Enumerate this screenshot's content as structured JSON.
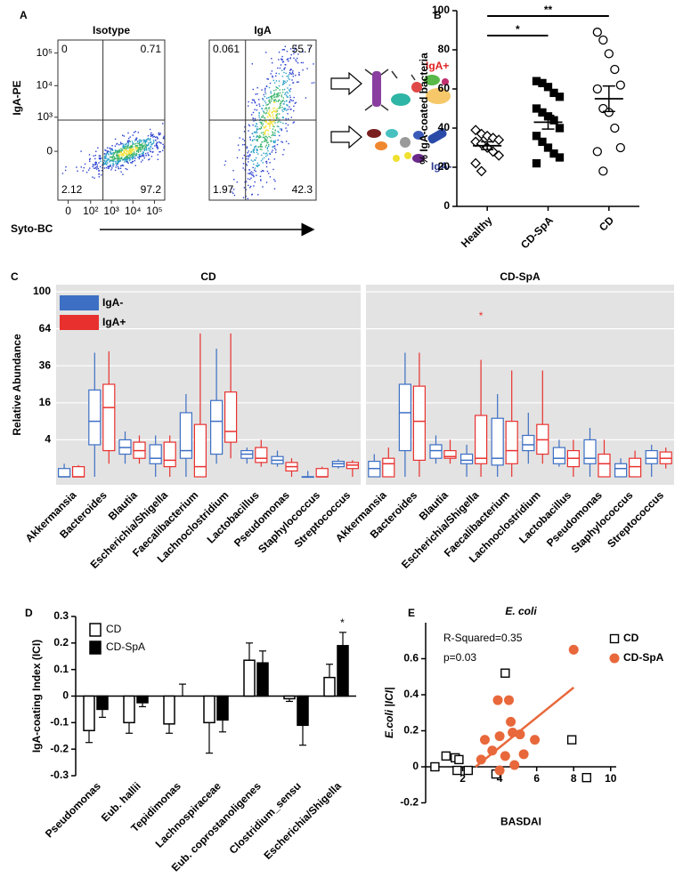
{
  "chart_data": [
    {
      "type": "flow",
      "panel": "A",
      "title": "Isotype",
      "xlabel": "Syto-BC",
      "ylabel": "IgA-PE",
      "scale": "symlog",
      "xlinthresh": 10,
      "ylinthresh": 100,
      "xlim": [
        -20,
        300000
      ],
      "ylim": [
        -3000,
        250000
      ],
      "xticks": [
        0,
        {
          "value": 100,
          "label": "10²"
        },
        {
          "value": 1000,
          "label": "10³"
        },
        {
          "value": 10000,
          "label": "10⁴"
        },
        {
          "value": 100000,
          "label": "10⁵"
        }
      ],
      "yticks": [
        0,
        {
          "value": 1000,
          "label": "10³"
        },
        {
          "value": 10000,
          "label": "10⁴"
        },
        {
          "value": 100000,
          "label": "10⁵"
        }
      ],
      "gates": {
        "x": 400,
        "y": 800
      },
      "quadrants": {
        "upper_left": 0,
        "upper_right": 0.71,
        "lower_left": 2.12,
        "lower_right": 97.2
      }
    },
    {
      "type": "flow",
      "title": "IgA",
      "scale": "symlog",
      "xlinthresh": 10,
      "ylinthresh": 100,
      "xlim": [
        -20,
        300000
      ],
      "ylim": [
        -3000,
        250000
      ],
      "gates": {
        "x": 150,
        "y": 800
      },
      "quadrants": {
        "upper_left": 0.061,
        "upper_right": 55.7,
        "lower_left": 1.97,
        "lower_right": 42.3
      },
      "annotations": [
        {
          "text": "IgA+",
          "color": "#e02020"
        },
        {
          "text": "IgA-",
          "color": "#2b3990"
        }
      ]
    },
    {
      "type": "dot",
      "panel": "B",
      "ylabel": "% IgA-coated bacteria",
      "ylim": [
        0,
        100
      ],
      "yticks": [
        0,
        20,
        40,
        60,
        80,
        100
      ],
      "categories": [
        "Healthy",
        "CD-SpA",
        "CD"
      ],
      "markers": [
        "diamond",
        "square",
        "circle"
      ],
      "colors": [
        "#ffffff",
        "#000000",
        "#ffffff"
      ],
      "values": [
        [
          39,
          37,
          36,
          35,
          34,
          33,
          32,
          30,
          28,
          26,
          22,
          18
        ],
        [
          64,
          63,
          61,
          58,
          56,
          50,
          48,
          46,
          44,
          40,
          36,
          33,
          30,
          27,
          25,
          22
        ],
        [
          89,
          85,
          78,
          70,
          62,
          60,
          50,
          48,
          40,
          30,
          28,
          18
        ]
      ],
      "means": [
        31,
        43,
        55
      ],
      "sems": [
        2,
        3.5,
        6.5
      ],
      "significance": [
        {
          "text": "*",
          "from": "Healthy",
          "to": "CD-SpA"
        },
        {
          "text": "**",
          "from": "Healthy",
          "to": "CD"
        }
      ]
    },
    {
      "type": "box",
      "panel": "C",
      "title": "CD",
      "ylabel": "Relative Abundance",
      "scale": "sqrt",
      "ylim": [
        0,
        100
      ],
      "yticks": [
        4,
        16,
        36,
        64,
        100
      ],
      "legend": "upper left",
      "categories": [
        "Akkermansia",
        "Bacteroides",
        "Blautia",
        "Escherichia/Shigella",
        "Faecalibacterium",
        "Lachnoclostridium",
        "Lactobacillus",
        "Pseudomonas",
        "Staphylococcus",
        "Streptococcus"
      ],
      "series": [
        {
          "name": "IgA-",
          "color": "#3d6fc4",
          "values": [
            [
              0,
              0,
              0,
              0.2,
              0.5
            ],
            [
              0,
              3,
              9,
              22,
              45
            ],
            [
              0.5,
              1.5,
              2.5,
              4,
              6
            ],
            [
              0,
              0.5,
              1,
              3,
              5
            ],
            [
              0,
              1,
              2,
              12,
              20
            ],
            [
              0.5,
              1.5,
              9,
              17,
              48
            ],
            [
              0.5,
              1,
              1.5,
              2,
              2.5
            ],
            [
              0.3,
              0.5,
              0.8,
              1.2,
              2
            ],
            [
              0,
              0,
              0,
              0,
              0.1
            ],
            [
              0.2,
              0.3,
              0.5,
              0.7,
              0.9
            ]
          ]
        },
        {
          "name": "IgA+",
          "color": "#e8312f",
          "values": [
            [
              0,
              0,
              0,
              0.3,
              0.4
            ],
            [
              0.5,
              2,
              14,
              25,
              46
            ],
            [
              0.5,
              1,
              2,
              3.5,
              5
            ],
            [
              0,
              0.3,
              0.8,
              3.5,
              5
            ],
            [
              0,
              0,
              0.3,
              8,
              60
            ],
            [
              1,
              3.5,
              6,
              21,
              60
            ],
            [
              0.3,
              0.6,
              1,
              2.5,
              4
            ],
            [
              0,
              0.1,
              0.3,
              0.6,
              1
            ],
            [
              0,
              0,
              0,
              0.2,
              0.3
            ],
            [
              0,
              0.2,
              0.4,
              0.6,
              0.8
            ]
          ]
        }
      ]
    },
    {
      "type": "box",
      "title": "CD-SpA",
      "scale": "sqrt",
      "ylim": [
        0,
        100
      ],
      "yticks": [
        4,
        16,
        36,
        64,
        100
      ],
      "categories": [
        "Akkermansia",
        "Bacteroides",
        "Blautia",
        "Escherichia/Shigella",
        "Faecalibacterium",
        "Lachnoclostridium",
        "Lactobacillus",
        "Pseudomonas",
        "Staphylococcus",
        "Streptococcus"
      ],
      "series": [
        {
          "name": "IgA-",
          "color": "#3d6fc4",
          "values": [
            [
              0,
              0,
              0.2,
              0.7,
              1.5
            ],
            [
              0,
              2,
              12,
              25,
              45
            ],
            [
              0.5,
              1,
              2,
              3,
              5
            ],
            [
              0,
              0.5,
              0.8,
              1.5,
              3
            ],
            [
              0,
              0.4,
              1,
              10,
              20
            ],
            [
              0.5,
              2,
              3,
              5,
              12
            ],
            [
              0.3,
              0.5,
              1,
              2.5,
              4
            ],
            [
              0,
              0.5,
              1,
              4,
              7
            ],
            [
              0,
              0,
              0.2,
              0.5,
              1
            ],
            [
              0,
              0.5,
              1,
              2,
              3
            ]
          ]
        },
        {
          "name": "IgA+",
          "color": "#e8312f",
          "values": [
            [
              0,
              0,
              0.5,
              1,
              2.5
            ],
            [
              0,
              0.8,
              9,
              24,
              45
            ],
            [
              0.5,
              1,
              1.2,
              2,
              4
            ],
            [
              0,
              0.5,
              1,
              11,
              40
            ],
            [
              0,
              0.5,
              2,
              9,
              33
            ],
            [
              0.5,
              1.5,
              4,
              8,
              33
            ],
            [
              0,
              0.3,
              1,
              2,
              4
            ],
            [
              0,
              0,
              0.5,
              1.5,
              4
            ],
            [
              0,
              0,
              0.3,
              1,
              2
            ],
            [
              0.2,
              0.5,
              1,
              1.8,
              2.5
            ]
          ]
        }
      ],
      "annotations": [
        {
          "text": "*",
          "category": "Escherichia/Shigella",
          "color": "#e8312f"
        }
      ]
    },
    {
      "type": "bar",
      "panel": "D",
      "ylabel": "IgA-coating Index (ICI)",
      "ylim": [
        -0.3,
        0.3
      ],
      "yticks": [
        -0.3,
        -0.2,
        -0.1,
        0,
        0.1,
        0.2,
        0.3
      ],
      "legend": "upper left",
      "categories": [
        "Pseudomonas",
        "Eub. hallii",
        "Tepidimonas",
        "Lachnospiraceae",
        "Eub. coprostanoligenes",
        "Clostridium_sensu",
        "Escherichia/Shigella"
      ],
      "series": [
        {
          "name": "CD",
          "color": "#ffffff",
          "values": [
            -0.13,
            -0.1,
            -0.105,
            -0.1,
            0.135,
            -0.01,
            0.07
          ],
          "errors": [
            0.045,
            0.04,
            0.035,
            0.115,
            0.065,
            0.01,
            0.05
          ]
        },
        {
          "name": "CD-SpA",
          "color": "#000000",
          "values": [
            -0.05,
            -0.025,
            0,
            -0.09,
            0.125,
            -0.11,
            0.19
          ],
          "errors": [
            0.03,
            0.015,
            0.045,
            0.045,
            0.045,
            0.075,
            0.05
          ]
        }
      ],
      "annotations": [
        {
          "text": "*",
          "category": "Escherichia/Shigella"
        }
      ]
    },
    {
      "type": "scatter",
      "panel": "E",
      "title": "E. coli",
      "xlabel": "BASDAI",
      "ylabel": "E.coli |ICI|",
      "xlim": [
        0,
        10.3
      ],
      "ylim": [
        -0.2,
        0.8
      ],
      "xticks": [
        2,
        4,
        6,
        8,
        10
      ],
      "yticks": [
        -0.2,
        0,
        0.2,
        0.4,
        0.6
      ],
      "legend": "upper right",
      "annotations": [
        "R-Squared=0.35",
        "p=0.03"
      ],
      "series": [
        {
          "name": "CD",
          "marker": "square",
          "color": "#ffffff",
          "x": [
            0.5,
            1.1,
            1.6,
            1.8,
            1.7,
            2.3,
            3.8,
            4.3,
            7.9,
            8.7
          ],
          "y": [
            0,
            0.06,
            0.05,
            0.04,
            -0.02,
            -0.02,
            -0.04,
            0.52,
            0.15,
            -0.06
          ]
        },
        {
          "name": "CD-SpA",
          "marker": "circle",
          "color": "#e8683b",
          "x": [
            3.0,
            3.2,
            3.6,
            3.9,
            4.0,
            4.0,
            4.3,
            4.5,
            4.6,
            4.7,
            4.8,
            5.1,
            5.3,
            5.9,
            8.0
          ],
          "y": [
            0.04,
            0.15,
            0.09,
            0.37,
            0.17,
            -0.02,
            0.06,
            0.37,
            0.25,
            0.19,
            0.01,
            0.18,
            0.07,
            0.15,
            0.65
          ]
        }
      ],
      "trendline": {
        "color": "#e8683b",
        "x": [
          2.7,
          8
        ],
        "y": [
          0,
          0.44
        ]
      }
    }
  ]
}
